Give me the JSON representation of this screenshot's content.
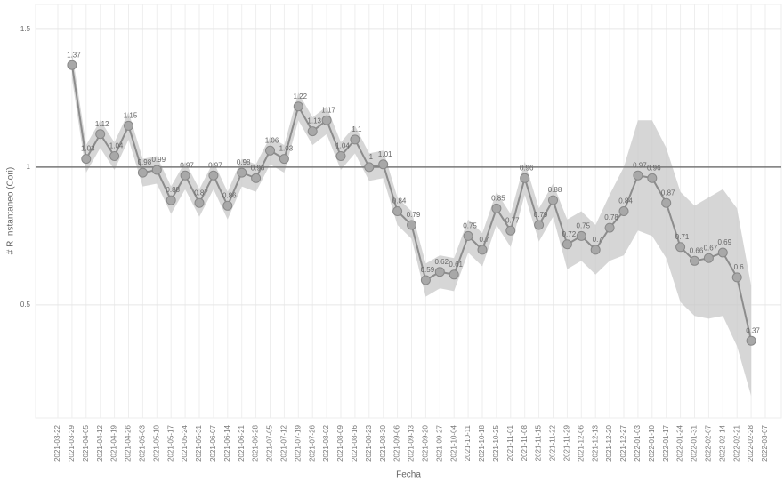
{
  "chart_data": {
    "type": "line",
    "y_label": "# R Instantaneo (Cori)",
    "x_label": "Fecha",
    "categories": [
      "2021-03-22",
      "2021-03-29",
      "2021-04-05",
      "2021-04-12",
      "2021-04-19",
      "2021-04-26",
      "2021-05-03",
      "2021-05-10",
      "2021-05-17",
      "2021-05-24",
      "2021-05-31",
      "2021-06-07",
      "2021-06-14",
      "2021-06-21",
      "2021-06-28",
      "2021-07-05",
      "2021-07-12",
      "2021-07-19",
      "2021-07-26",
      "2021-08-02",
      "2021-08-09",
      "2021-08-16",
      "2021-08-23",
      "2021-08-30",
      "2021-09-06",
      "2021-09-13",
      "2021-09-20",
      "2021-09-27",
      "2021-10-04",
      "2021-10-11",
      "2021-10-18",
      "2021-10-25",
      "2021-11-01",
      "2021-11-08",
      "2021-11-15",
      "2021-11-22",
      "2021-11-29",
      "2021-12-06",
      "2021-12-13",
      "2021-12-20",
      "2021-12-27",
      "2022-01-03",
      "2022-01-10",
      "2022-01-17",
      "2022-01-24",
      "2022-01-31",
      "2022-02-07",
      "2022-02-14",
      "2022-02-21",
      "2022-02-28",
      "2022-03-07"
    ],
    "values": [
      null,
      1.37,
      1.03,
      1.12,
      1.04,
      1.15,
      0.98,
      0.99,
      0.88,
      0.97,
      0.87,
      0.97,
      0.86,
      0.98,
      0.96,
      1.06,
      1.03,
      1.22,
      1.13,
      1.17,
      1.04,
      1.1,
      1.0,
      1.01,
      0.84,
      0.79,
      0.59,
      0.62,
      0.61,
      0.75,
      0.7,
      0.85,
      0.77,
      0.96,
      0.79,
      0.88,
      0.72,
      0.75,
      0.7,
      0.78,
      0.84,
      0.97,
      0.96,
      0.87,
      0.71,
      0.66,
      0.67,
      0.69,
      0.6,
      0.37,
      null
    ],
    "lower": [
      null,
      1.32,
      0.98,
      1.07,
      0.99,
      1.1,
      0.93,
      0.94,
      0.83,
      0.92,
      0.82,
      0.92,
      0.81,
      0.93,
      0.91,
      1.01,
      0.98,
      1.17,
      1.08,
      1.12,
      0.99,
      1.05,
      0.95,
      0.96,
      0.79,
      0.74,
      0.53,
      0.56,
      0.55,
      0.69,
      0.64,
      0.79,
      0.71,
      0.9,
      0.73,
      0.82,
      0.63,
      0.66,
      0.61,
      0.66,
      0.68,
      0.77,
      0.75,
      0.67,
      0.51,
      0.46,
      0.45,
      0.46,
      0.35,
      0.17,
      null
    ],
    "upper": [
      null,
      1.42,
      1.08,
      1.17,
      1.09,
      1.2,
      1.03,
      1.04,
      0.93,
      1.02,
      0.92,
      1.02,
      0.91,
      1.03,
      1.01,
      1.11,
      1.08,
      1.27,
      1.18,
      1.22,
      1.09,
      1.15,
      1.05,
      1.06,
      0.89,
      0.84,
      0.65,
      0.68,
      0.67,
      0.81,
      0.76,
      0.91,
      0.83,
      1.02,
      0.85,
      0.94,
      0.81,
      0.84,
      0.79,
      0.9,
      1.0,
      1.17,
      1.17,
      1.07,
      0.91,
      0.86,
      0.89,
      0.92,
      0.85,
      0.57,
      null
    ],
    "color": "#8c8c8c",
    "band_color": "#c8c8c8",
    "hline": 1,
    "ylim": [
      0.09,
      1.59
    ],
    "yticks": [
      0.5,
      1,
      1.5
    ],
    "grid": true
  }
}
